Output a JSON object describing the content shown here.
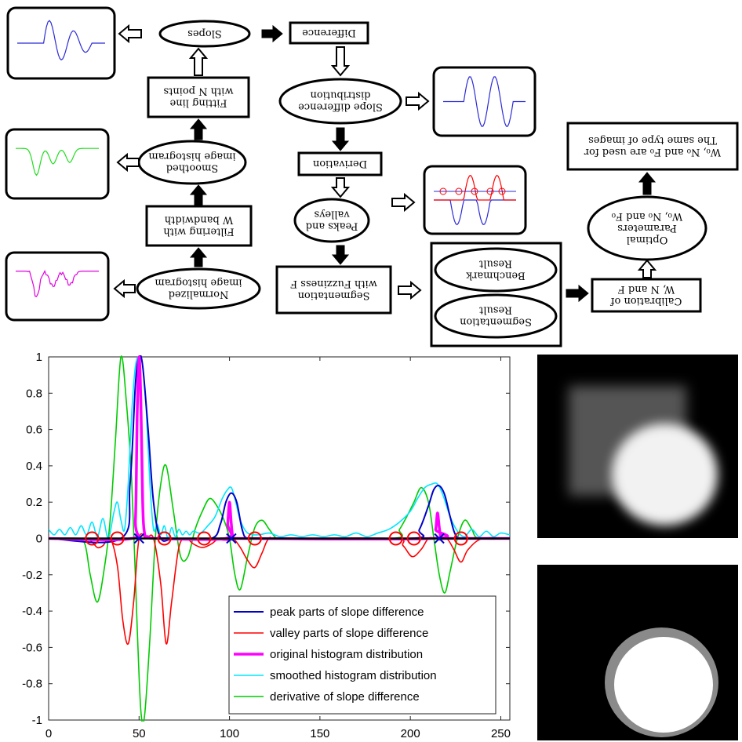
{
  "flowchart": {
    "nodes": [
      {
        "id": "normalized",
        "lines": [
          "Normalized",
          "image histogram"
        ]
      },
      {
        "id": "filtering",
        "lines": [
          "Filtering with",
          "W bandwidth"
        ]
      },
      {
        "id": "smoothed",
        "lines": [
          "Smoothed",
          "image histogram"
        ]
      },
      {
        "id": "fitting",
        "lines": [
          "Fitting line",
          "with N points"
        ]
      },
      {
        "id": "slopes",
        "lines": [
          "Slopes"
        ]
      },
      {
        "id": "difference",
        "lines": [
          "Difference"
        ]
      },
      {
        "id": "slopediff",
        "lines": [
          "Slope difference",
          "distribution"
        ]
      },
      {
        "id": "derivation",
        "lines": [
          "Derivation"
        ]
      },
      {
        "id": "peaks",
        "lines": [
          "Peaks and",
          "valleys"
        ]
      },
      {
        "id": "segfuzzy",
        "lines": [
          "Segmentation",
          "with Fuzziness F"
        ]
      },
      {
        "id": "benchmark",
        "lines": [
          "Benchmark",
          "Result"
        ]
      },
      {
        "id": "segresult",
        "lines": [
          "Segmentation",
          "Result"
        ]
      },
      {
        "id": "calibration",
        "lines": [
          "Calibration of",
          "W, N and F"
        ]
      },
      {
        "id": "optimal",
        "lines": [
          "Optimal",
          "Parameters",
          "W₀, N₀ and F₀"
        ]
      },
      {
        "id": "sametype",
        "lines": [
          "W₀, N₀ and F₀ are used for",
          "The same type of images"
        ]
      }
    ]
  },
  "chart_data": {
    "type": "line",
    "xlim": [
      0,
      255
    ],
    "ylim": [
      -1,
      1
    ],
    "xticks": [
      "0",
      "50",
      "100",
      "150",
      "200",
      "250"
    ],
    "yticks": [
      "1",
      "0.8",
      "0.6",
      "0.4",
      "0.2",
      "0",
      "-0.2",
      "-0.4",
      "-0.6",
      "-0.8",
      "-1"
    ],
    "legend_position": "bottom-right",
    "series": [
      {
        "name": "peak parts of slope difference",
        "color": "#0000c8",
        "x": [
          0,
          40,
          45,
          48,
          50,
          52,
          55,
          58,
          62,
          70,
          90,
          95,
          98,
          101,
          104,
          107,
          110,
          120,
          200,
          205,
          210,
          213,
          216,
          219,
          222,
          225,
          230,
          255
        ],
        "y": [
          0,
          0,
          0.3,
          0.85,
          1.0,
          0.95,
          0.6,
          0.2,
          0,
          0,
          0,
          0.08,
          0.2,
          0.25,
          0.2,
          0.05,
          0,
          0,
          0,
          0.05,
          0.18,
          0.27,
          0.29,
          0.24,
          0.12,
          0.02,
          0,
          0
        ]
      },
      {
        "name": "valley parts of slope difference",
        "color": "#ff0000",
        "x": [
          0,
          20,
          24,
          27,
          30,
          34,
          38,
          41,
          44,
          47,
          50,
          54,
          58,
          62,
          65,
          68,
          72,
          76,
          80,
          85,
          90,
          94,
          98,
          102,
          106,
          110,
          114,
          118,
          122,
          130,
          190,
          196,
          201,
          206,
          210,
          214,
          220,
          224,
          228,
          232,
          240,
          255
        ],
        "y": [
          0,
          0,
          -0.02,
          -0.05,
          -0.04,
          0,
          -0.15,
          -0.45,
          -0.58,
          -0.35,
          0,
          0,
          0,
          -0.25,
          -0.58,
          -0.35,
          -0.05,
          0,
          -0.03,
          -0.05,
          -0.03,
          0,
          0,
          0,
          -0.05,
          -0.12,
          -0.16,
          -0.08,
          0,
          0,
          0,
          -0.04,
          -0.1,
          -0.06,
          0,
          0,
          0,
          -0.06,
          -0.13,
          -0.06,
          0,
          0
        ]
      },
      {
        "name": "original histogram distribution",
        "color": "#ff00ff",
        "x": [
          0,
          46,
          48,
          49,
          50,
          51,
          52,
          53,
          55,
          60,
          98,
          99,
          100,
          101,
          102,
          104,
          212,
          214,
          215,
          216,
          217,
          219,
          255
        ],
        "y": [
          0,
          0,
          0.1,
          0.7,
          1.0,
          0.75,
          0.2,
          0.03,
          0.01,
          0,
          0,
          0.08,
          0.2,
          0.08,
          0,
          0,
          0,
          0.05,
          0.14,
          0.06,
          0,
          0,
          0
        ]
      },
      {
        "name": "smoothed histogram distribution",
        "color": "#00e5ff",
        "x": [
          0,
          3,
          6,
          9,
          12,
          15,
          18,
          21,
          24,
          27,
          30,
          33,
          36,
          38,
          40,
          42,
          44,
          46,
          48,
          50,
          52,
          54,
          56,
          58,
          60,
          62,
          64,
          66,
          68,
          70,
          72,
          74,
          76,
          78,
          80,
          84,
          88,
          92,
          96,
          99,
          101,
          103,
          106,
          110,
          116,
          122,
          128,
          134,
          140,
          146,
          152,
          158,
          164,
          170,
          176,
          182,
          188,
          194,
          200,
          204,
          208,
          212,
          215,
          218,
          222,
          226,
          230,
          234,
          238,
          242,
          246,
          250,
          255
        ],
        "y": [
          0.05,
          0.02,
          0.05,
          0.02,
          0.06,
          0.02,
          0.07,
          0.02,
          0.09,
          0.01,
          0.11,
          0.0,
          0.14,
          0.2,
          0.1,
          0.05,
          0.3,
          0.7,
          0.95,
          1.0,
          0.95,
          0.7,
          0.3,
          0.05,
          0.08,
          0.02,
          0.07,
          0.0,
          0.06,
          0.01,
          0.05,
          0.02,
          0.04,
          0.02,
          0.04,
          0.03,
          0.07,
          0.12,
          0.22,
          0.27,
          0.28,
          0.22,
          0.1,
          0.03,
          0.02,
          0.03,
          0.01,
          0.02,
          0.01,
          0.02,
          0.01,
          0.02,
          0.01,
          0.03,
          0.01,
          0.03,
          0.05,
          0.09,
          0.15,
          0.22,
          0.28,
          0.3,
          0.3,
          0.24,
          0.12,
          0.04,
          0.01,
          0.05,
          0.01,
          0.04,
          0.01,
          0.03,
          0.02
        ]
      },
      {
        "name": "derivative of slope difference",
        "color": "#00cc00",
        "x": [
          0,
          15,
          20,
          23,
          27,
          31,
          34,
          37,
          40,
          43,
          46,
          49,
          51,
          53,
          56,
          59,
          62,
          65,
          69,
          73,
          77,
          81,
          85,
          89,
          93,
          97,
          100,
          103,
          106,
          110,
          114,
          118,
          122,
          126,
          130,
          190,
          194,
          198,
          202,
          206,
          210,
          213,
          216,
          219,
          222,
          226,
          230,
          234,
          238,
          255
        ],
        "y": [
          0,
          0,
          -0.03,
          -0.2,
          -0.35,
          -0.15,
          0.1,
          0.55,
          1.0,
          0.75,
          0.3,
          -0.5,
          -0.95,
          -0.98,
          -0.55,
          0.0,
          0.3,
          0.4,
          0.15,
          -0.1,
          -0.1,
          0.05,
          0.15,
          0.22,
          0.18,
          0.1,
          0.0,
          -0.2,
          -0.28,
          -0.1,
          0.06,
          0.1,
          0.05,
          0.0,
          0.0,
          0.0,
          0.05,
          0.12,
          0.2,
          0.28,
          0.2,
          0.0,
          -0.2,
          -0.3,
          -0.18,
          0.0,
          0.1,
          0.05,
          0.0,
          0.0
        ]
      }
    ],
    "markers": {
      "circles_x": [
        24,
        38,
        64,
        86,
        114,
        192,
        202,
        228
      ],
      "crosses_x": [
        50,
        101,
        216
      ]
    }
  }
}
